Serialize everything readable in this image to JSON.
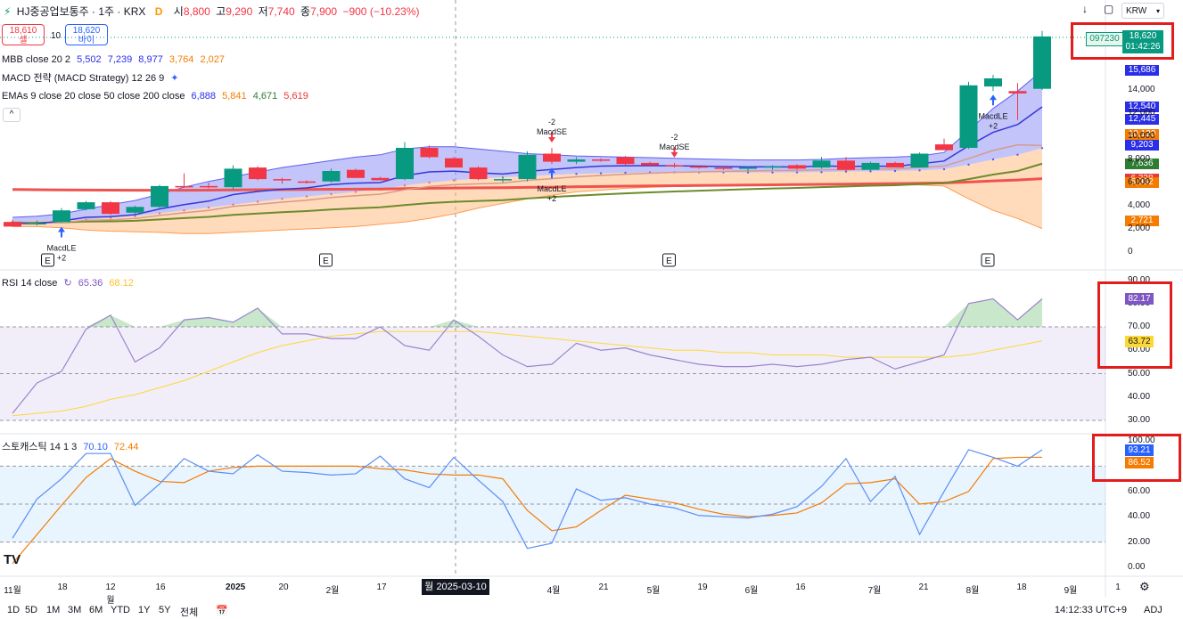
{
  "header": {
    "symbol_icon": "split-icon",
    "title": "HJ중공업보통주 · 1주 · KRX",
    "badge": "D",
    "open_label": "시",
    "open": "8,800",
    "high_label": "고",
    "high": "9,290",
    "low_label": "저",
    "low": "7,740",
    "close_label": "종",
    "close": "7,900",
    "change": "−900 (−10.23%)"
  },
  "trade": {
    "sell_price": "18,610",
    "sell_label": "셀",
    "spread": "10",
    "buy_price": "18,620",
    "buy_label": "바이"
  },
  "legends": {
    "mbb": {
      "name": "MBB close 20 2",
      "v1": "5,502",
      "v2": "7,239",
      "v3": "8,977",
      "v4": "3,764",
      "v5": "2,027"
    },
    "macd": {
      "name": "MACD 전략 (MACD Strategy) 12 26 9"
    },
    "emas": {
      "name": "EMAs 9 close 20 close 50 close 200 close",
      "v1": "6,888",
      "v2": "5,841",
      "v3": "4,671",
      "v4": "5,619"
    },
    "rsi": {
      "name": "RSI 14 close",
      "v1": "65.36",
      "v2": "68.12"
    },
    "stoch": {
      "name": "스토캐스틱 14 1 3",
      "v1": "70.10",
      "v2": "72.44"
    }
  },
  "top_right": {
    "currency": "KRW"
  },
  "price_axis": {
    "current_code": "097230",
    "current_price": "18,620",
    "countdown": "01:42:26",
    "tags": [
      {
        "label": "15,686",
        "color": "#2a2ee8",
        "y": 15686
      },
      {
        "label": "12,540",
        "color": "#2a2ee8",
        "y": 12540
      },
      {
        "label": "12,445",
        "color": "#2a2ee8",
        "y": 12445
      },
      {
        "label": "10,120",
        "color": "#f57c00",
        "y": 10120
      },
      {
        "label": "9,203",
        "color": "#2a2ee8",
        "y": 9203
      },
      {
        "label": "7,636",
        "color": "#2e7d32",
        "y": 7636
      },
      {
        "label": "6,338",
        "color": "#e53935",
        "y": 6338
      },
      {
        "label": "5,962",
        "color": "#f57c00",
        "y": 5962
      },
      {
        "label": "2,721",
        "color": "#f57c00",
        "y": 2721
      }
    ],
    "ticks": [
      "14,000",
      "12,000",
      "10,000",
      "8,000",
      "6,000",
      "4,000",
      "2,000",
      "0"
    ]
  },
  "rsi_axis": {
    "ticks": [
      "90.00",
      "80.00",
      "70.00",
      "60.00",
      "50.00",
      "40.00",
      "30.00"
    ],
    "tag1": "82.17",
    "tag1_color": "#7e57c2",
    "tag2": "63.72",
    "tag2_color": "#fdd835"
  },
  "stoch_axis": {
    "ticks": [
      "100.00",
      "80.00",
      "60.00",
      "40.00",
      "20.00",
      "0.00"
    ],
    "tag1": "93.21",
    "tag1_color": "#2962ff",
    "tag2": "86.52",
    "tag2_color": "#f57c00"
  },
  "time_axis": {
    "labels": [
      "11월",
      "18",
      "12월",
      "16",
      "2025",
      "20",
      "2월",
      "17",
      "4월",
      "21",
      "5월",
      "19",
      "6월",
      "16",
      "7월",
      "21",
      "8월",
      "18",
      "9월",
      "1"
    ],
    "crosshair_label": "월 2025-03-10"
  },
  "toolbar": {
    "ranges": [
      "1D",
      "5D",
      "1M",
      "3M",
      "6M",
      "YTD",
      "1Y",
      "5Y",
      "전체"
    ],
    "time": "14:12:33 UTC+9",
    "adj": "ADJ"
  },
  "signals": [
    {
      "type": "MacdLE",
      "label": "MacdLE",
      "qty": "+2",
      "bar": 2
    },
    {
      "type": "MacdSE",
      "label": "MacdSE",
      "qty": "-2",
      "bar": 22
    },
    {
      "type": "MacdLE",
      "label": "MacdLE",
      "qty": "+2",
      "bar": 22
    },
    {
      "type": "MacdSE",
      "label": "MacdSE",
      "qty": "-2",
      "bar": 27
    },
    {
      "type": "MacdLE",
      "label": "MacdLE",
      "qty": "+2",
      "bar": 40
    }
  ],
  "earnings_marker": "E",
  "chart_data": {
    "type": "candlestick",
    "title": "HJ중공업보통주 · 1주 · KRX",
    "price_range": [
      0,
      19000
    ],
    "candles": [
      {
        "o": 2600,
        "h": 2800,
        "l": 2200,
        "c": 2200
      },
      {
        "o": 2500,
        "h": 2600,
        "l": 2300,
        "c": 2500
      },
      {
        "o": 2600,
        "h": 3800,
        "l": 2500,
        "c": 3600
      },
      {
        "o": 3700,
        "h": 4400,
        "l": 3600,
        "c": 4300
      },
      {
        "o": 4300,
        "h": 4400,
        "l": 3200,
        "c": 3300
      },
      {
        "o": 3400,
        "h": 4000,
        "l": 3300,
        "c": 3900
      },
      {
        "o": 3900,
        "h": 5800,
        "l": 3800,
        "c": 5700
      },
      {
        "o": 5700,
        "h": 6800,
        "l": 5600,
        "c": 5600
      },
      {
        "o": 5700,
        "h": 6000,
        "l": 5500,
        "c": 5600
      },
      {
        "o": 5600,
        "h": 7500,
        "l": 5400,
        "c": 7200
      },
      {
        "o": 7300,
        "h": 7400,
        "l": 6200,
        "c": 6300
      },
      {
        "o": 6300,
        "h": 6400,
        "l": 5900,
        "c": 6200
      },
      {
        "o": 6100,
        "h": 6200,
        "l": 5900,
        "c": 6000
      },
      {
        "o": 6100,
        "h": 7200,
        "l": 6000,
        "c": 7000
      },
      {
        "o": 7100,
        "h": 7200,
        "l": 6400,
        "c": 6400
      },
      {
        "o": 6400,
        "h": 6500,
        "l": 6200,
        "c": 6200
      },
      {
        "o": 6300,
        "h": 9500,
        "l": 6200,
        "c": 9000
      },
      {
        "o": 9000,
        "h": 9200,
        "l": 8100,
        "c": 8200
      },
      {
        "o": 8100,
        "h": 8200,
        "l": 7400,
        "c": 7300
      },
      {
        "o": 7300,
        "h": 7400,
        "l": 6200,
        "c": 6300
      },
      {
        "o": 6300,
        "h": 6500,
        "l": 6000,
        "c": 6300
      },
      {
        "o": 6300,
        "h": 8700,
        "l": 6100,
        "c": 8400
      },
      {
        "o": 8500,
        "h": 9000,
        "l": 7600,
        "c": 7800
      },
      {
        "o": 7800,
        "h": 8200,
        "l": 7600,
        "c": 8000
      },
      {
        "o": 8000,
        "h": 8100,
        "l": 7800,
        "c": 7900
      },
      {
        "o": 8200,
        "h": 8300,
        "l": 7500,
        "c": 7600
      },
      {
        "o": 7700,
        "h": 7800,
        "l": 7500,
        "c": 7500
      },
      {
        "o": 7500,
        "h": 7700,
        "l": 7300,
        "c": 7400
      },
      {
        "o": 7400,
        "h": 7500,
        "l": 7200,
        "c": 7300
      },
      {
        "o": 7300,
        "h": 7400,
        "l": 7100,
        "c": 7200
      },
      {
        "o": 7200,
        "h": 7400,
        "l": 7000,
        "c": 7300
      },
      {
        "o": 7300,
        "h": 7500,
        "l": 7100,
        "c": 7400
      },
      {
        "o": 7500,
        "h": 7600,
        "l": 7100,
        "c": 7200
      },
      {
        "o": 7300,
        "h": 8200,
        "l": 7200,
        "c": 7900
      },
      {
        "o": 7900,
        "h": 8200,
        "l": 7000,
        "c": 7100
      },
      {
        "o": 7100,
        "h": 7800,
        "l": 7000,
        "c": 7700
      },
      {
        "o": 7700,
        "h": 7800,
        "l": 7300,
        "c": 7300
      },
      {
        "o": 7300,
        "h": 8600,
        "l": 7300,
        "c": 8500
      },
      {
        "o": 9300,
        "h": 9800,
        "l": 8800,
        "c": 8800
      },
      {
        "o": 9000,
        "h": 14700,
        "l": 8900,
        "c": 14400
      },
      {
        "o": 14300,
        "h": 15300,
        "l": 13900,
        "c": 15000
      },
      {
        "o": 13900,
        "h": 14600,
        "l": 11400,
        "c": 13700
      },
      {
        "o": 14100,
        "h": 19100,
        "l": 14000,
        "c": 18620
      }
    ],
    "indicators": {
      "mbb": {
        "basis": [
          2600,
          2650,
          2700,
          2800,
          2950,
          3100,
          3350,
          3600,
          3850,
          4100,
          4350,
          4600,
          4800,
          5000,
          5200,
          5400,
          5750,
          6000,
          6200,
          6350,
          6450,
          6550,
          6650,
          6750,
          6800,
          6850,
          6870,
          6880,
          6880,
          6880,
          6870,
          6870,
          6880,
          6900,
          6950,
          6970,
          7000,
          7050,
          7150,
          7550,
          8000,
          8400,
          8977
        ],
        "upper": [
          3000,
          3100,
          3300,
          3700,
          4100,
          4450,
          5000,
          5600,
          6100,
          6500,
          6900,
          7300,
          7600,
          7900,
          8200,
          8400,
          8900,
          9100,
          9100,
          8900,
          8700,
          8500,
          8400,
          8300,
          8250,
          8200,
          8150,
          8100,
          8050,
          8000,
          7950,
          7950,
          7950,
          8000,
          8100,
          8150,
          8200,
          8300,
          8600,
          10500,
          12400,
          13900,
          15686
        ],
        "lower": [
          2200,
          2200,
          2100,
          1900,
          1800,
          1750,
          1700,
          1600,
          1600,
          1700,
          1800,
          1900,
          2000,
          2100,
          2200,
          2400,
          2600,
          2900,
          3300,
          3800,
          4200,
          4600,
          4900,
          5200,
          5350,
          5500,
          5600,
          5660,
          5700,
          5760,
          5790,
          5790,
          5810,
          5800,
          5800,
          5790,
          5800,
          5800,
          5700,
          4600,
          3600,
          2900,
          2027
        ]
      },
      "ema9": [
        2450,
        2460,
        2680,
        3000,
        3060,
        3230,
        3720,
        4100,
        4400,
        4960,
        5230,
        5420,
        5540,
        5830,
        5950,
        6000,
        6600,
        6920,
        6990,
        6850,
        6740,
        6960,
        7130,
        7300,
        7420,
        7450,
        7460,
        7450,
        7420,
        7380,
        7360,
        7370,
        7340,
        7450,
        7380,
        7420,
        7400,
        7620,
        7860,
        9170,
        10340,
        11010,
        12540
      ],
      "ema20": [
        2500,
        2490,
        2570,
        2740,
        2790,
        2900,
        3160,
        3390,
        3600,
        3940,
        4120,
        4310,
        4470,
        4710,
        4870,
        5000,
        5380,
        5660,
        5820,
        5890,
        5960,
        6190,
        6340,
        6500,
        6620,
        6720,
        6810,
        6880,
        6920,
        6960,
        7000,
        7040,
        7050,
        7110,
        7110,
        7170,
        7180,
        7310,
        7420,
        8070,
        8780,
        9260,
        9203
      ],
      "ema50": [
        2550,
        2540,
        2570,
        2630,
        2650,
        2700,
        2820,
        2930,
        3040,
        3210,
        3330,
        3440,
        3540,
        3670,
        3780,
        3870,
        4060,
        4230,
        4340,
        4410,
        4480,
        4630,
        4750,
        4870,
        4970,
        5070,
        5150,
        5230,
        5300,
        5370,
        5430,
        5490,
        5540,
        5610,
        5660,
        5730,
        5770,
        5870,
        5950,
        6300,
        6690,
        7000,
        7636
      ],
      "ema200": [
        5400,
        5380,
        5370,
        5360,
        5350,
        5340,
        5340,
        5340,
        5350,
        5370,
        5380,
        5390,
        5400,
        5420,
        5430,
        5440,
        5480,
        5510,
        5530,
        5550,
        5560,
        5590,
        5610,
        5640,
        5660,
        5690,
        5710,
        5730,
        5750,
        5770,
        5790,
        5810,
        5830,
        5850,
        5870,
        5890,
        5910,
        5940,
        5970,
        6050,
        6140,
        6220,
        6338
      ],
      "rsi": [
        33,
        46,
        51,
        69,
        75,
        55,
        61,
        73,
        74,
        72,
        78,
        67,
        67,
        65,
        65,
        70,
        62,
        60,
        73,
        66,
        58,
        53,
        54,
        63,
        60,
        61,
        58,
        56,
        54,
        53,
        53,
        54,
        53,
        54,
        56,
        57,
        52,
        55,
        58,
        80,
        82,
        73,
        82
      ],
      "rsi_ma": [
        32,
        33,
        34,
        36,
        39,
        41,
        44,
        47,
        51,
        55,
        59,
        62,
        64,
        66,
        67,
        68,
        68,
        68,
        68,
        68,
        67,
        66,
        65,
        64,
        63,
        62,
        61,
        60,
        60,
        59,
        59,
        58,
        58,
        58,
        57,
        57,
        57,
        57,
        57,
        58,
        60,
        62,
        64
      ],
      "stoch_k": [
        23,
        54,
        70,
        90,
        90,
        49,
        66,
        86,
        76,
        74,
        89,
        76,
        75,
        73,
        74,
        88,
        70,
        63,
        87,
        69,
        52,
        15,
        19,
        62,
        53,
        55,
        50,
        47,
        41,
        40,
        39,
        42,
        48,
        64,
        86,
        52,
        72,
        26,
        60,
        93,
        87,
        80,
        93
      ],
      "stoch_d": [
        3,
        26,
        49,
        71,
        86,
        76,
        68,
        67,
        76,
        79,
        80,
        80,
        80,
        80,
        80,
        78,
        77,
        74,
        73,
        73,
        70,
        45,
        29,
        32,
        45,
        57,
        54,
        51,
        46,
        42,
        40,
        41,
        43,
        51,
        66,
        67,
        70,
        50,
        52,
        60,
        86,
        87,
        87
      ]
    }
  }
}
